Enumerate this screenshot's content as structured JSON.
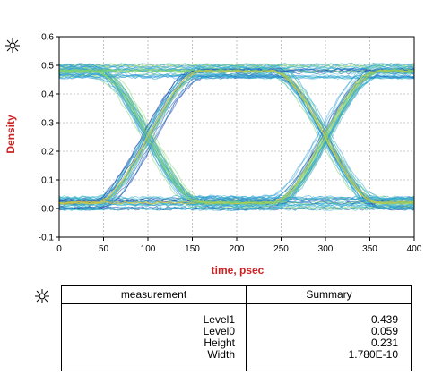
{
  "chart_data": {
    "type": "line",
    "title": "",
    "xlabel": "time, psec",
    "ylabel": "Density",
    "xlim": [
      0,
      400
    ],
    "ylim": [
      -0.1,
      0.6
    ],
    "xticks": [
      0,
      50,
      100,
      150,
      200,
      250,
      300,
      350,
      400
    ],
    "yticks": [
      -0.1,
      0.0,
      0.1,
      0.2,
      0.3,
      0.4,
      0.5,
      0.6
    ],
    "grid": true,
    "eye_diagram": {
      "level1": 0.48,
      "level0": 0.02,
      "crossings": [
        {
          "x": 100,
          "y": 0.25
        },
        {
          "x": 300,
          "y": 0.25
        }
      ],
      "period_ps": 200
    },
    "colors": {
      "outer": "#2f9fd8",
      "mid": "#35b7c9",
      "core": "#7fd36a",
      "edge": "#1f3fb0",
      "hot": "#d9c93a"
    }
  },
  "table": {
    "header": {
      "col1": "measurement",
      "col2": "Summary"
    },
    "rows": [
      {
        "name": "Level1",
        "value": "0.439"
      },
      {
        "name": "Level0",
        "value": "0.059"
      },
      {
        "name": "Height",
        "value": "0.231"
      },
      {
        "name": "Width",
        "value": "1.780E-10"
      }
    ]
  },
  "icons": {
    "chart_marker": "marker-icon",
    "table_marker": "marker-icon"
  }
}
